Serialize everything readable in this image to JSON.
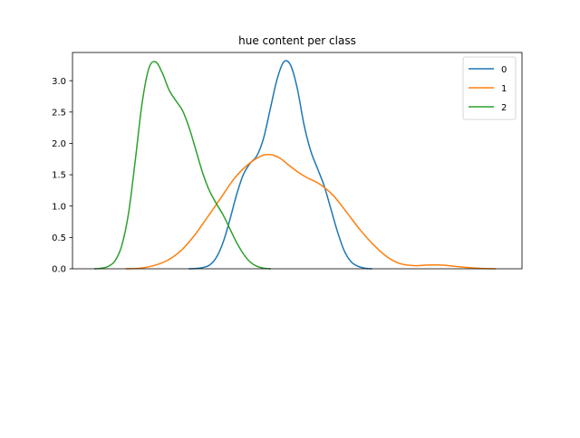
{
  "chart_data": {
    "type": "line",
    "title": "hue content per class",
    "xlabel": "",
    "ylabel": "",
    "ylim": [
      0,
      3.45
    ],
    "yticks": [
      "0.0",
      "0.5",
      "1.0",
      "1.5",
      "2.0",
      "2.5",
      "3.0"
    ],
    "xticks": [],
    "grid": false,
    "legend_position": "top-right",
    "series": [
      {
        "name": "0",
        "color": "#1f77b4",
        "points": [
          [
            0.26,
            0.0
          ],
          [
            0.275,
            0.005
          ],
          [
            0.29,
            0.02
          ],
          [
            0.305,
            0.06
          ],
          [
            0.32,
            0.18
          ],
          [
            0.335,
            0.42
          ],
          [
            0.35,
            0.78
          ],
          [
            0.365,
            1.18
          ],
          [
            0.38,
            1.5
          ],
          [
            0.395,
            1.68
          ],
          [
            0.41,
            1.8
          ],
          [
            0.425,
            2.08
          ],
          [
            0.44,
            2.55
          ],
          [
            0.455,
            3.02
          ],
          [
            0.47,
            3.3
          ],
          [
            0.485,
            3.25
          ],
          [
            0.5,
            2.88
          ],
          [
            0.515,
            2.3
          ],
          [
            0.53,
            1.88
          ],
          [
            0.545,
            1.6
          ],
          [
            0.56,
            1.32
          ],
          [
            0.575,
            0.95
          ],
          [
            0.59,
            0.58
          ],
          [
            0.605,
            0.28
          ],
          [
            0.62,
            0.11
          ],
          [
            0.635,
            0.04
          ],
          [
            0.65,
            0.01
          ],
          [
            0.665,
            0.0
          ]
        ]
      },
      {
        "name": "1",
        "color": "#ff7f0e",
        "points": [
          [
            0.12,
            0.0
          ],
          [
            0.15,
            0.01
          ],
          [
            0.18,
            0.05
          ],
          [
            0.21,
            0.13
          ],
          [
            0.24,
            0.28
          ],
          [
            0.27,
            0.52
          ],
          [
            0.3,
            0.82
          ],
          [
            0.33,
            1.13
          ],
          [
            0.36,
            1.44
          ],
          [
            0.39,
            1.66
          ],
          [
            0.42,
            1.8
          ],
          [
            0.44,
            1.82
          ],
          [
            0.46,
            1.77
          ],
          [
            0.48,
            1.66
          ],
          [
            0.5,
            1.55
          ],
          [
            0.52,
            1.46
          ],
          [
            0.55,
            1.35
          ],
          [
            0.58,
            1.17
          ],
          [
            0.61,
            0.9
          ],
          [
            0.64,
            0.62
          ],
          [
            0.67,
            0.38
          ],
          [
            0.7,
            0.19
          ],
          [
            0.73,
            0.08
          ],
          [
            0.76,
            0.05
          ],
          [
            0.79,
            0.06
          ],
          [
            0.82,
            0.06
          ],
          [
            0.85,
            0.04
          ],
          [
            0.88,
            0.02
          ],
          [
            0.91,
            0.005
          ],
          [
            0.94,
            0.0
          ]
        ]
      },
      {
        "name": "2",
        "color": "#2ca02c",
        "points": [
          [
            0.05,
            0.0
          ],
          [
            0.065,
            0.01
          ],
          [
            0.08,
            0.04
          ],
          [
            0.095,
            0.13
          ],
          [
            0.11,
            0.38
          ],
          [
            0.125,
            0.9
          ],
          [
            0.14,
            1.75
          ],
          [
            0.155,
            2.65
          ],
          [
            0.17,
            3.2
          ],
          [
            0.185,
            3.3
          ],
          [
            0.2,
            3.12
          ],
          [
            0.215,
            2.85
          ],
          [
            0.23,
            2.68
          ],
          [
            0.245,
            2.52
          ],
          [
            0.26,
            2.24
          ],
          [
            0.275,
            1.88
          ],
          [
            0.29,
            1.52
          ],
          [
            0.305,
            1.24
          ],
          [
            0.32,
            1.04
          ],
          [
            0.335,
            0.86
          ],
          [
            0.35,
            0.64
          ],
          [
            0.365,
            0.42
          ],
          [
            0.38,
            0.24
          ],
          [
            0.395,
            0.11
          ],
          [
            0.41,
            0.04
          ],
          [
            0.425,
            0.01
          ],
          [
            0.44,
            0.0
          ]
        ]
      }
    ]
  }
}
